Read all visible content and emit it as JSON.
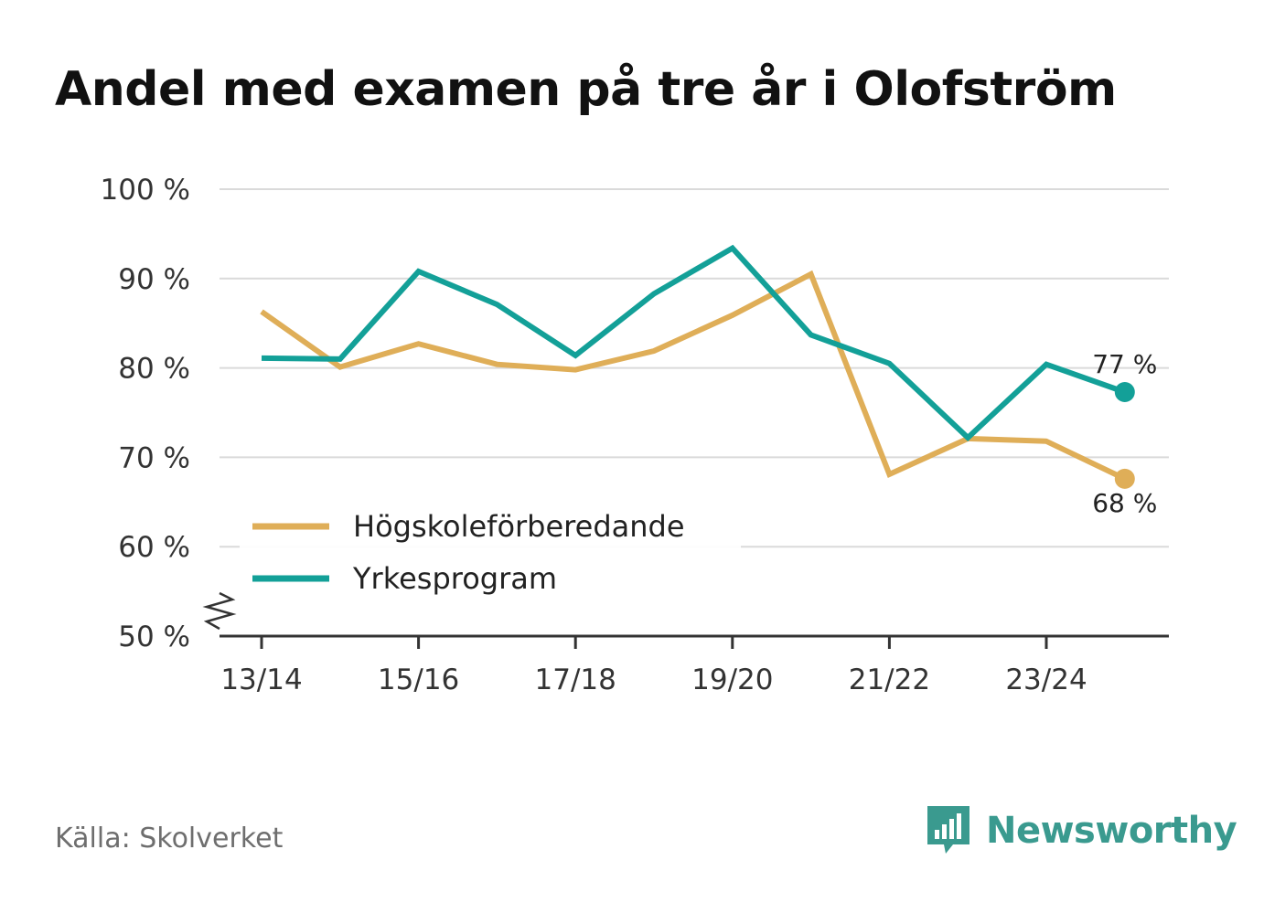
{
  "chart_data": {
    "type": "line",
    "title": "Andel med examen på tre år i Olofström",
    "categories": [
      "13/14",
      "14/15",
      "15/16",
      "16/17",
      "17/18",
      "18/19",
      "19/20",
      "20/21",
      "21/22",
      "22/23",
      "23/24",
      "24/25"
    ],
    "tick_labels": [
      "13/14",
      "15/16",
      "17/18",
      "19/20",
      "21/22",
      "23/24"
    ],
    "y_ticks": [
      50,
      60,
      70,
      80,
      90,
      100
    ],
    "y_tick_labels": [
      "50 %",
      "60 %",
      "70 %",
      "80 %",
      "90 %",
      "100 %"
    ],
    "ylim": [
      50,
      100
    ],
    "y_axis_break": true,
    "grid": true,
    "legend_position": "bottom-left",
    "series": [
      {
        "name": "Högskoleförberedande",
        "color": "#dfae58",
        "values": [
          86.3,
          80.1,
          82.7,
          80.4,
          79.8,
          81.9,
          85.9,
          90.5,
          68.1,
          72.1,
          71.8,
          67.6
        ],
        "end_label": "68 %"
      },
      {
        "name": "Yrkesprogram",
        "color": "#13a098",
        "values": [
          81.1,
          81.0,
          90.8,
          87.1,
          81.4,
          88.3,
          93.4,
          83.7,
          80.5,
          72.2,
          80.4,
          77.3
        ],
        "end_label": "77 %"
      }
    ]
  },
  "footer": {
    "source": "Källa: Skolverket",
    "brand": "Newsworthy",
    "brand_color": "#3a9a8f",
    "logo_icon": "bar-chart-speech-bubble-icon"
  }
}
